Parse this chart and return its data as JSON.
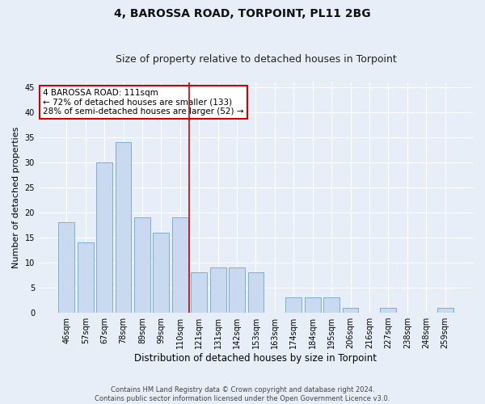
{
  "title": "4, BAROSSA ROAD, TORPOINT, PL11 2BG",
  "subtitle": "Size of property relative to detached houses in Torpoint",
  "xlabel": "Distribution of detached houses by size in Torpoint",
  "ylabel": "Number of detached properties",
  "categories": [
    "46sqm",
    "57sqm",
    "67sqm",
    "78sqm",
    "89sqm",
    "99sqm",
    "110sqm",
    "121sqm",
    "131sqm",
    "142sqm",
    "153sqm",
    "163sqm",
    "174sqm",
    "184sqm",
    "195sqm",
    "206sqm",
    "216sqm",
    "227sqm",
    "238sqm",
    "248sqm",
    "259sqm"
  ],
  "values": [
    18,
    14,
    30,
    34,
    19,
    16,
    19,
    8,
    9,
    9,
    8,
    0,
    3,
    3,
    3,
    1,
    0,
    1,
    0,
    0,
    1
  ],
  "bar_color": "#c9d9ef",
  "bar_edge_color": "#7aafd4",
  "vline_x_index": 6.5,
  "vline_color": "#cc0000",
  "annotation_text": "4 BAROSSA ROAD: 111sqm\n← 72% of detached houses are smaller (133)\n28% of semi-detached houses are larger (52) →",
  "annotation_box_color": "#ffffff",
  "annotation_box_edge_color": "#cc0000",
  "ylim": [
    0,
    46
  ],
  "yticks": [
    0,
    5,
    10,
    15,
    20,
    25,
    30,
    35,
    40,
    45
  ],
  "background_color": "#e8eef8",
  "grid_color": "#ffffff",
  "footer_line1": "Contains HM Land Registry data © Crown copyright and database right 2024.",
  "footer_line2": "Contains public sector information licensed under the Open Government Licence v3.0.",
  "title_fontsize": 10,
  "subtitle_fontsize": 9,
  "xlabel_fontsize": 8.5,
  "ylabel_fontsize": 8,
  "tick_fontsize": 7,
  "annotation_fontsize": 7.5,
  "footer_fontsize": 6
}
